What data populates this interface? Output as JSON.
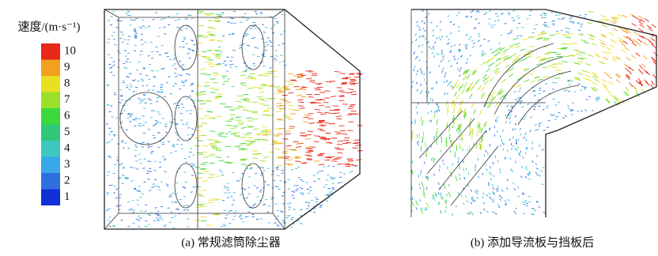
{
  "legend": {
    "title": "速度/(m·s⁻¹)",
    "ticks": [
      10,
      9,
      8,
      7,
      6,
      5,
      4,
      3,
      2,
      1
    ]
  },
  "captions": {
    "a": "(a) 常规滤筒除尘器",
    "b": "(b) 添加导流板与挡板后"
  }
}
